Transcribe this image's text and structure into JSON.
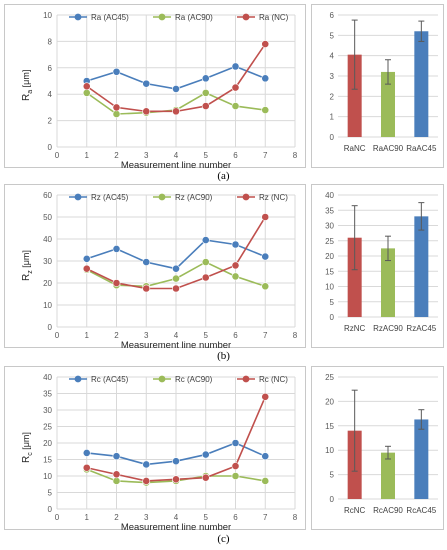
{
  "figures": [
    {
      "caption": "(a)",
      "line_chart": {
        "ylabel_main": "R",
        "ylabel_sub": "a",
        "ylabel_unit": "[μm]",
        "xlabel": "Measurement line number"
      },
      "bar_chart": {}
    },
    {
      "caption": "(b)",
      "line_chart": {
        "ylabel_main": "R",
        "ylabel_sub": "z",
        "ylabel_unit": "[μm]",
        "xlabel": "Measurement line number"
      },
      "bar_chart": {}
    },
    {
      "caption": "(c)",
      "line_chart": {
        "ylabel_main": "R",
        "ylabel_sub": "c",
        "ylabel_unit": "[μm]",
        "xlabel": "Measurement line number"
      },
      "bar_chart": {}
    }
  ],
  "chart_data": [
    {
      "type": "line",
      "xlabel": "Measurement line number",
      "ylabel": "Ra [μm]",
      "xlim": [
        0,
        8
      ],
      "ylim": [
        0,
        10
      ],
      "xticks": [
        0,
        1,
        2,
        3,
        4,
        5,
        6,
        7,
        8
      ],
      "yticks": [
        0,
        2,
        4,
        6,
        8,
        10
      ],
      "grid": true,
      "legend": "top",
      "x": [
        1,
        2,
        3,
        4,
        5,
        6,
        7
      ],
      "series": [
        {
          "name": "Ra (AC45)",
          "color": "#4a7ebb",
          "values": [
            5.0,
            5.7,
            4.8,
            4.4,
            5.2,
            6.1,
            5.2
          ]
        },
        {
          "name": "Ra (AC90)",
          "color": "#9bbb59",
          "values": [
            4.1,
            2.5,
            2.6,
            2.8,
            4.1,
            3.1,
            2.8
          ]
        },
        {
          "name": "Ra (NC)",
          "color": "#c0504d",
          "values": [
            4.6,
            3.0,
            2.7,
            2.7,
            3.1,
            4.5,
            7.8
          ]
        }
      ]
    },
    {
      "type": "bar",
      "ylim": [
        0,
        6
      ],
      "yticks": [
        0,
        1,
        2,
        3,
        4,
        5,
        6
      ],
      "grid": true,
      "categories": [
        "RaNC",
        "RaAC90",
        "RaAC45"
      ],
      "colors": [
        "#c0504d",
        "#9bbb59",
        "#4a7ebb"
      ],
      "values": [
        4.05,
        3.2,
        5.2
      ],
      "errors": [
        1.7,
        0.6,
        0.5
      ]
    },
    {
      "type": "line",
      "xlabel": "Measurement line number",
      "ylabel": "Rz [μm]",
      "xlim": [
        0,
        8
      ],
      "ylim": [
        0,
        60
      ],
      "xticks": [
        0,
        1,
        2,
        3,
        4,
        5,
        6,
        7,
        8
      ],
      "yticks": [
        0,
        10,
        20,
        30,
        40,
        50,
        60
      ],
      "grid": true,
      "legend": "top",
      "x": [
        1,
        2,
        3,
        4,
        5,
        6,
        7
      ],
      "series": [
        {
          "name": "Rz (AC45)",
          "color": "#4a7ebb",
          "values": [
            31,
            35.5,
            29.5,
            26.5,
            39.5,
            37.5,
            32
          ]
        },
        {
          "name": "Rz (AC90)",
          "color": "#9bbb59",
          "values": [
            26,
            19,
            18.5,
            22,
            29.5,
            23,
            18.5
          ]
        },
        {
          "name": "Rz (NC)",
          "color": "#c0504d",
          "values": [
            26.5,
            20,
            17.5,
            17.5,
            22.5,
            28,
            50
          ]
        }
      ]
    },
    {
      "type": "bar",
      "ylim": [
        0,
        40
      ],
      "yticks": [
        0,
        5,
        10,
        15,
        20,
        25,
        30,
        35,
        40
      ],
      "grid": true,
      "categories": [
        "RzNC",
        "RzAC90",
        "RzAC45"
      ],
      "colors": [
        "#c0504d",
        "#9bbb59",
        "#4a7ebb"
      ],
      "values": [
        26,
        22.5,
        33
      ],
      "errors": [
        10.5,
        4,
        4.5
      ]
    },
    {
      "type": "line",
      "xlabel": "Measurement line number",
      "ylabel": "Rc [μm]",
      "xlim": [
        0,
        8
      ],
      "ylim": [
        0,
        40
      ],
      "xticks": [
        0,
        1,
        2,
        3,
        4,
        5,
        6,
        7,
        8
      ],
      "yticks": [
        0,
        5,
        10,
        15,
        20,
        25,
        30,
        35,
        40
      ],
      "grid": true,
      "legend": "top",
      "x": [
        1,
        2,
        3,
        4,
        5,
        6,
        7
      ],
      "series": [
        {
          "name": "Rc (AC45)",
          "color": "#4a7ebb",
          "values": [
            17,
            16,
            13.5,
            14.5,
            16.5,
            20,
            16
          ]
        },
        {
          "name": "Rc (AC90)",
          "color": "#9bbb59",
          "values": [
            12,
            8.5,
            8,
            8.5,
            10,
            10,
            8.5
          ]
        },
        {
          "name": "Rc (NC)",
          "color": "#c0504d",
          "values": [
            12.5,
            10.5,
            8.5,
            9,
            9.5,
            13,
            34
          ]
        }
      ]
    },
    {
      "type": "bar",
      "ylim": [
        0,
        25
      ],
      "yticks": [
        0,
        5,
        10,
        15,
        20,
        25
      ],
      "grid": true,
      "categories": [
        "RcNC",
        "RcAC90",
        "RcAC45"
      ],
      "colors": [
        "#c0504d",
        "#9bbb59",
        "#4a7ebb"
      ],
      "values": [
        14,
        9.5,
        16.3
      ],
      "errors": [
        8.3,
        1.3,
        2
      ]
    }
  ]
}
